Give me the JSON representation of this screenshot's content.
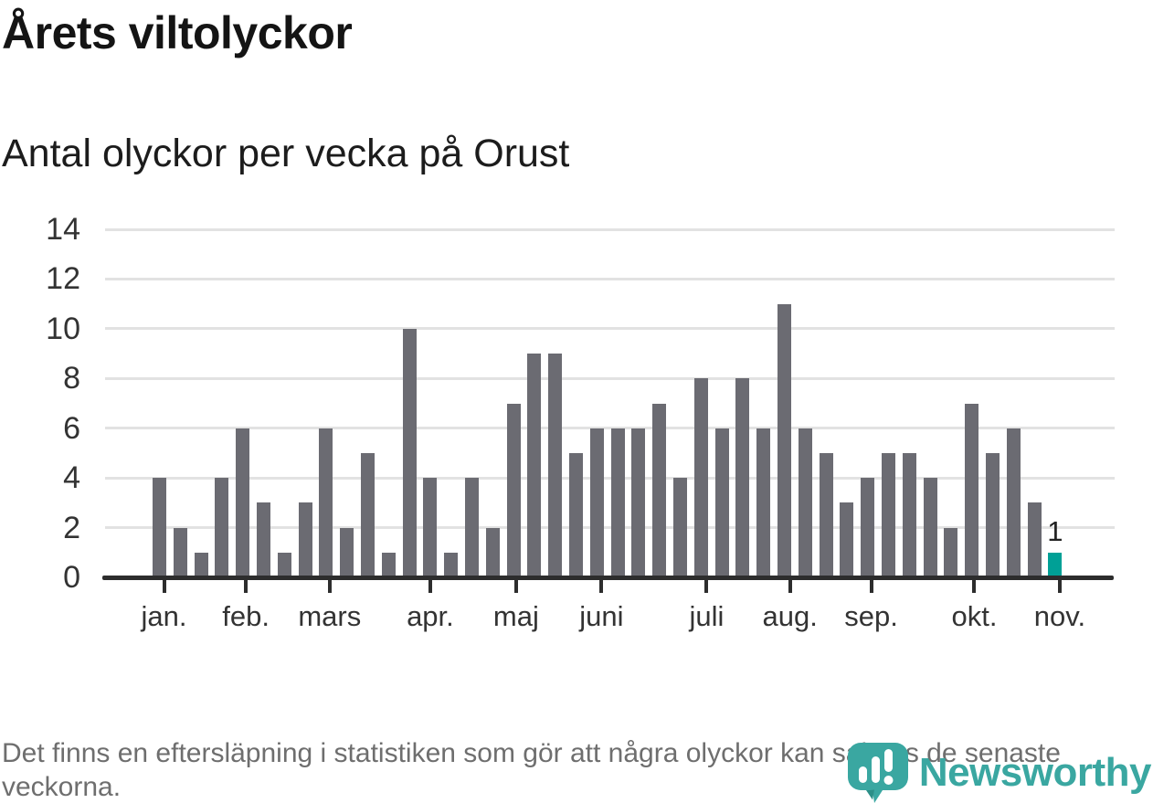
{
  "header": {
    "title": "Årets viltolyckor",
    "subtitle": "Antal olyckor per vecka på Orust"
  },
  "footer": {
    "note": "Det finns en eftersläpning i statistiken som gör att några olyckor kan saknas de senaste veckorna."
  },
  "branding": {
    "name": "Newsworthy",
    "color": "#3aa7a1",
    "icon": "newsworthy-speech-bubble-barchart-icon"
  },
  "chart_data": {
    "type": "bar",
    "title": "Årets viltolyckor",
    "subtitle": "Antal olyckor per vecka på Orust",
    "x_unit": "vecka",
    "values": [
      4,
      2,
      1,
      4,
      6,
      3,
      1,
      3,
      6,
      2,
      5,
      1,
      10,
      4,
      1,
      4,
      2,
      7,
      9,
      9,
      5,
      6,
      6,
      6,
      7,
      4,
      8,
      6,
      8,
      6,
      11,
      6,
      5,
      3,
      4,
      5,
      5,
      4,
      2,
      7,
      5,
      6,
      3,
      1
    ],
    "highlight_last": true,
    "last_value_label": "1",
    "months": [
      {
        "label": "jan.",
        "pos": 0.55
      },
      {
        "label": "feb.",
        "pos": 4.48
      },
      {
        "label": "mars",
        "pos": 8.5
      },
      {
        "label": "apr.",
        "pos": 13.33
      },
      {
        "label": "maj",
        "pos": 17.45
      },
      {
        "label": "juni",
        "pos": 21.55
      },
      {
        "label": "juli",
        "pos": 26.6
      },
      {
        "label": "aug.",
        "pos": 30.6
      },
      {
        "label": "sep.",
        "pos": 34.5
      },
      {
        "label": "okt.",
        "pos": 39.45
      },
      {
        "label": "nov.",
        "pos": 43.55
      }
    ],
    "y_ticks": [
      0,
      2,
      4,
      6,
      8,
      10,
      12,
      14
    ],
    "ylim": [
      0,
      14
    ],
    "grid": true,
    "legend": false,
    "bar_color": "#6b6b72",
    "highlight_color": "#00a096",
    "gridline_color": "#e2e2e2",
    "axis_color": "#2d2d2d"
  }
}
